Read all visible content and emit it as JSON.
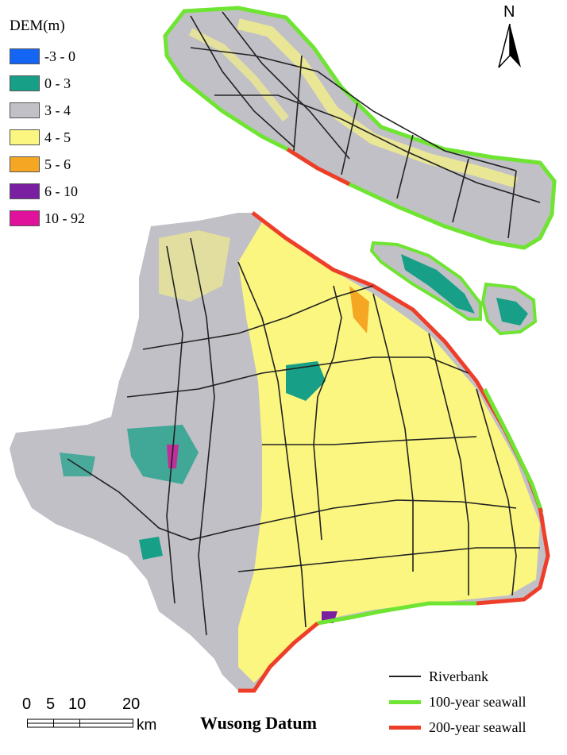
{
  "legend": {
    "title": "DEM(m)",
    "items": [
      {
        "label": "-3 - 0",
        "color": "#1565f5"
      },
      {
        "label": "0 - 3",
        "color": "#17a087"
      },
      {
        "label": "3 - 4",
        "color": "#c0c0c6"
      },
      {
        "label": "4 - 5",
        "color": "#fbf680"
      },
      {
        "label": "5 - 6",
        "color": "#f5a623"
      },
      {
        "label": "6 - 10",
        "color": "#7b1fa2"
      },
      {
        "label": "10 - 92",
        "color": "#e0119b"
      }
    ]
  },
  "line_key": [
    {
      "label": "Riverbank",
      "color": "#222222"
    },
    {
      "label": "100-year seawall",
      "color": "#6fe432"
    },
    {
      "label": "200-year seawall",
      "color": "#ee3e2a"
    }
  ],
  "north_arrow": {
    "label": "N",
    "icon": "north-arrow-icon"
  },
  "scale_bar": {
    "ticks": [
      "0",
      "5",
      "10",
      "20"
    ],
    "unit": "km"
  },
  "datum": "Wusong Datum"
}
